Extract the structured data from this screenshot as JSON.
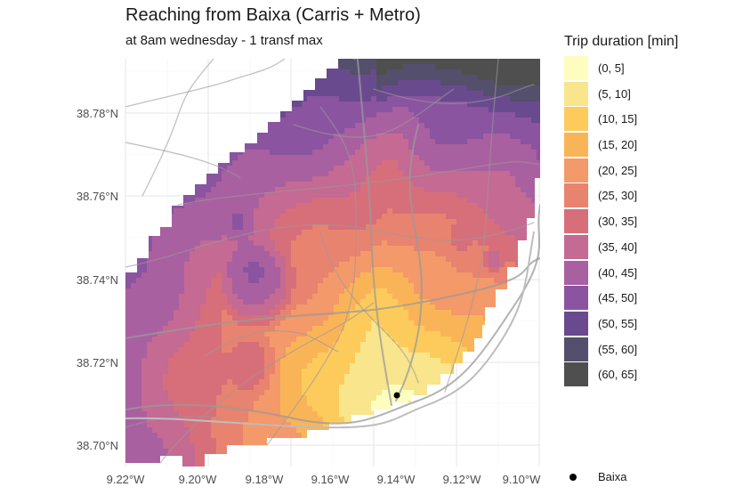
{
  "title": "Reaching from Baixa (Carris + Metro)",
  "subtitle": "at 8am wednesday - 1 transf max",
  "map": {
    "y_labels": [
      "38.78°N",
      "38.76°N",
      "38.74°N",
      "38.72°N",
      "38.70°N"
    ],
    "x_labels": [
      "9.22°W",
      "9.20°W",
      "9.18°W",
      "9.16°W",
      "9.14°W",
      "9.12°W",
      "9.10°W"
    ],
    "origin": "Baixa"
  },
  "legend": {
    "title": "Trip duration [min]",
    "items": [
      {
        "label": "(0, 5]",
        "color": "#fcfdbf"
      },
      {
        "label": "(5, 10]",
        "color": "#f8e58c"
      },
      {
        "label": "(10, 15]",
        "color": "#fdcb5c"
      },
      {
        "label": "(15, 20]",
        "color": "#fab458"
      },
      {
        "label": "(20, 25]",
        "color": "#f4996a"
      },
      {
        "label": "(25, 30]",
        "color": "#e8836f"
      },
      {
        "label": "(30, 35]",
        "color": "#d76f7a"
      },
      {
        "label": "(35, 40]",
        "color": "#c46a93"
      },
      {
        "label": "(40, 45]",
        "color": "#a960a0"
      },
      {
        "label": "(45, 50]",
        "color": "#8a54a0"
      },
      {
        "label": "(50, 55]",
        "color": "#6a4a8e"
      },
      {
        "label": "(55, 60]",
        "color": "#544f6c"
      },
      {
        "label": "(60, 65]",
        "color": "#4f4f4f"
      }
    ]
  },
  "point_legend": {
    "label": "Baixa"
  }
}
